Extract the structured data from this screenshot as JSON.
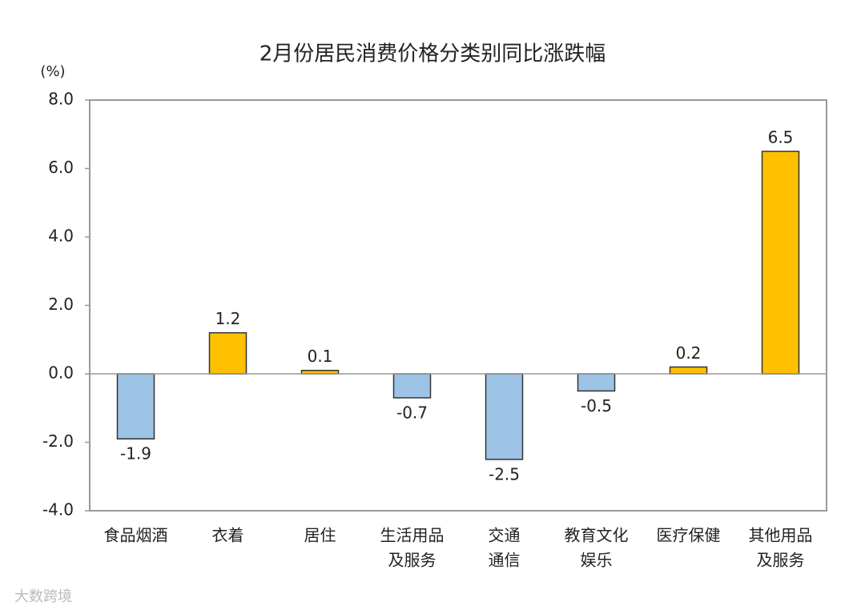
{
  "chart_data": {
    "type": "bar",
    "title": "2月份居民消费价格分类别同比涨跌幅",
    "y_unit": "(%)",
    "categories": [
      [
        "食品烟酒"
      ],
      [
        "衣着"
      ],
      [
        "居住"
      ],
      [
        "生活用品",
        "及服务"
      ],
      [
        "交通",
        "通信"
      ],
      [
        "教育文化",
        "娱乐"
      ],
      [
        "医疗保健"
      ],
      [
        "其他用品",
        "及服务"
      ]
    ],
    "values": [
      -1.9,
      1.2,
      0.1,
      -0.7,
      -2.5,
      -0.5,
      0.2,
      6.5
    ],
    "colors": [
      "#9dc3e6",
      "#ffc000",
      "#ffc000",
      "#9dc3e6",
      "#9dc3e6",
      "#9dc3e6",
      "#ffc000",
      "#ffc000"
    ],
    "ylim": [
      -4,
      8
    ],
    "yticks": [
      {
        "value": -4,
        "label": "-4.0"
      },
      {
        "value": -2,
        "label": "-2.0"
      },
      {
        "value": 0,
        "label": "0.0"
      },
      {
        "value": 2,
        "label": "2.0"
      },
      {
        "value": 4,
        "label": "4.0"
      },
      {
        "value": 6,
        "label": "6.0"
      },
      {
        "value": 8,
        "label": "8.0"
      }
    ],
    "grid": false,
    "watermark": "大数跨境"
  }
}
